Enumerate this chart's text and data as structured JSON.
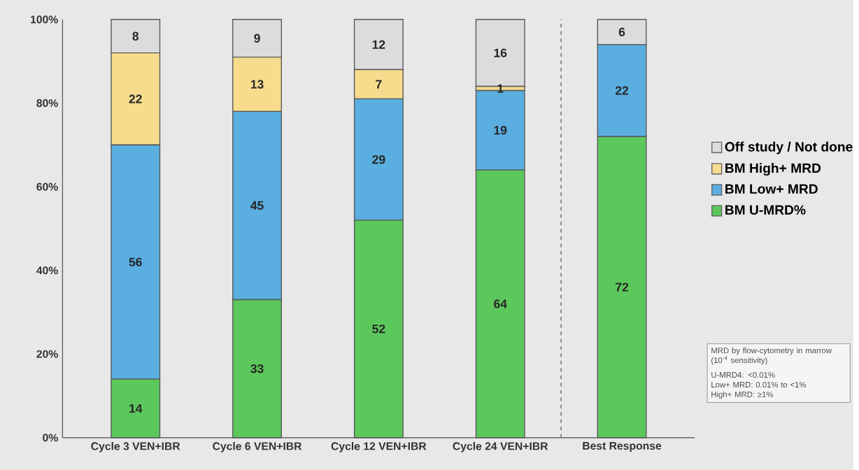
{
  "chart_data": {
    "type": "bar",
    "stacked": true,
    "categories": [
      "Cycle 3 VEN+IBR",
      "Cycle 6 VEN+IBR",
      "Cycle 12 VEN+IBR",
      "Cycle 24 VEN+IBR",
      "Best Response"
    ],
    "series": [
      {
        "name": "BM U-MRD%",
        "color": "#5cc85c",
        "values": [
          14,
          33,
          52,
          64,
          72
        ]
      },
      {
        "name": "BM Low+ MRD",
        "color": "#5aaee0",
        "values": [
          56,
          45,
          29,
          19,
          22
        ]
      },
      {
        "name": "BM High+ MRD",
        "color": "#f8dc8e",
        "values": [
          22,
          13,
          7,
          1,
          0
        ],
        "value_labels": [
          "22",
          "13",
          "7",
          "1",
          null
        ]
      },
      {
        "name": "Off study / Not done",
        "color": "#dcdcdc",
        "values": [
          8,
          9,
          12,
          16,
          6
        ]
      }
    ],
    "ylim": [
      0,
      100
    ],
    "yticks": [
      {
        "value": 0,
        "label": "0%"
      },
      {
        "value": 20,
        "label": "20%"
      },
      {
        "value": 40,
        "label": "40%"
      },
      {
        "value": 60,
        "label": "60%"
      },
      {
        "value": 80,
        "label": "80%"
      },
      {
        "value": 100,
        "label": "100%"
      }
    ],
    "data_labels": true,
    "legend": "right",
    "grid": false,
    "annotations": [
      "MRD by flow-cytometry in marrow (10$^{-4}$ sensitivity)",
      "U-MRD4: <0.01%",
      "Low+ MRD: 0.01% to <1%",
      "High+ MRD: ≥1%"
    ]
  }
}
